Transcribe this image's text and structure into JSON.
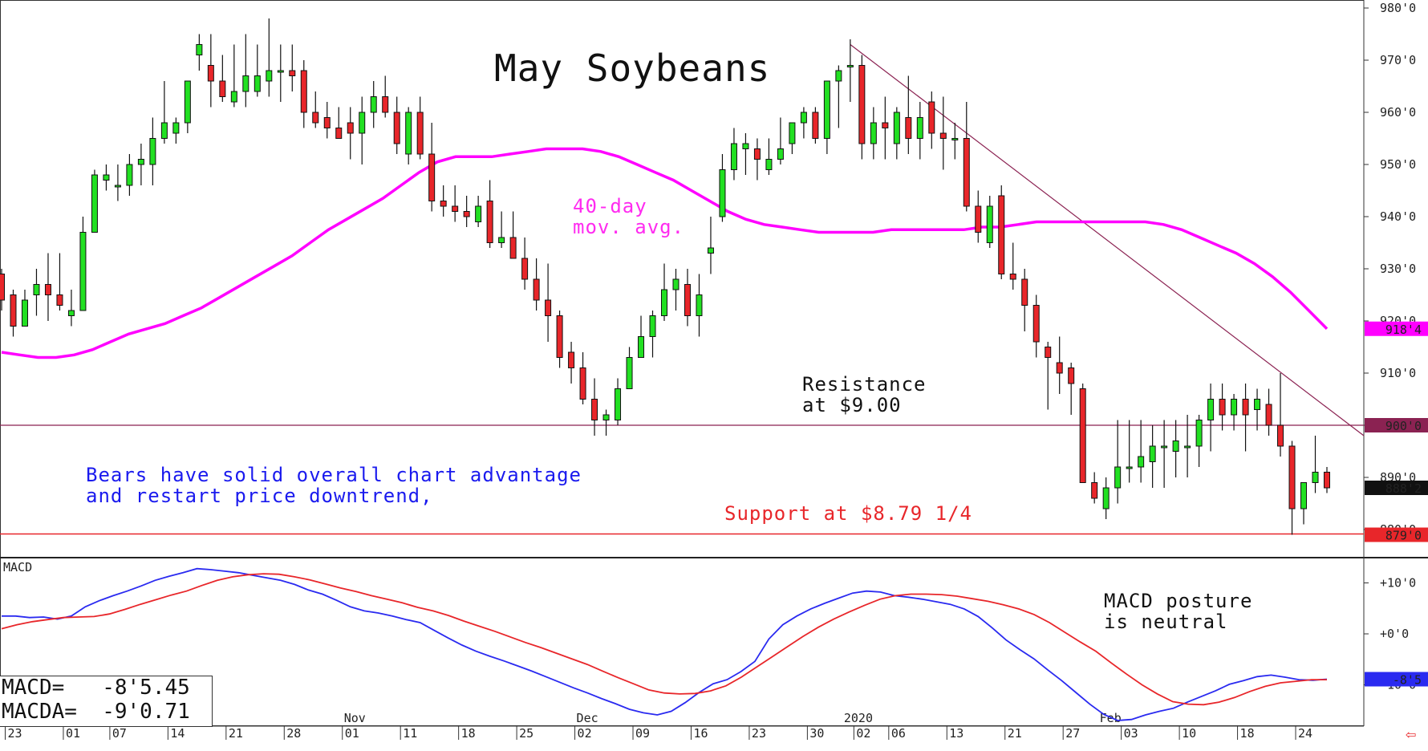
{
  "chart_data": [
    {
      "type": "candlestick",
      "title": "May Soybeans",
      "y_tick_labels": [
        "980'0",
        "970'0",
        "960'0",
        "950'0",
        "940'0",
        "930'0",
        "920'0",
        "910'0",
        "900'0",
        "890'0",
        "880'0"
      ],
      "ylim": [
        875,
        980
      ],
      "x_tick_labels": [
        "23",
        "01",
        "07",
        "14",
        "21",
        "28",
        "01",
        "11",
        "18",
        "25",
        "02",
        "09",
        "16",
        "23",
        "30",
        "02",
        "06",
        "13",
        "21",
        "27",
        "03",
        "10",
        "18",
        "24"
      ],
      "x_month_labels": [
        "Nov",
        "Dec",
        "2020",
        "Feb"
      ],
      "price_markers": {
        "ma": {
          "label": "918'4",
          "color": "#ff00ff"
        },
        "resistance": {
          "label": "900'0",
          "color": "#8b2252"
        },
        "last": {
          "label": "888'2",
          "color": "#111111"
        },
        "support": {
          "label": "879'0",
          "color": "#e8262a"
        }
      },
      "annotations": {
        "ma_label": "40-day\nmov. avg.",
        "resistance": "Resistance\nat $9.00",
        "bears": "Bears have solid overall chart advantage\nand restart price downtrend,",
        "support": "Support at $8.79 1/4",
        "macd_posture": "MACD posture\nis neutral"
      },
      "levels": {
        "resistance": 900,
        "support": 879
      },
      "trendline": {
        "start": 973,
        "end": 898
      },
      "moving_average": [
        914,
        913.5,
        913,
        913,
        913.5,
        914.5,
        916,
        917.5,
        918.5,
        919.5,
        921,
        922.5,
        924.5,
        926.5,
        928.5,
        930.5,
        932.5,
        935,
        937.5,
        939.5,
        941.5,
        943.5,
        946,
        948.5,
        950.5,
        951.5,
        951.5,
        951.5,
        952,
        952.5,
        953,
        953,
        953,
        952.5,
        951.5,
        950,
        948.5,
        947,
        945,
        943,
        941,
        939.5,
        938.5,
        938,
        937.5,
        937,
        937,
        937,
        937,
        937.5,
        937.5,
        937.5,
        937.5,
        937.5,
        938,
        938,
        938.5,
        939,
        939,
        939,
        939,
        939,
        939,
        939,
        938.5,
        937.5,
        936,
        934.5,
        933,
        931,
        928.5,
        925.5,
        922,
        918.5
      ],
      "candles": [
        [
          929,
          930,
          922,
          924
        ],
        [
          925,
          926,
          917,
          919
        ],
        [
          919,
          926,
          919,
          924
        ],
        [
          925,
          930,
          921,
          927
        ],
        [
          927,
          933,
          920,
          925
        ],
        [
          925,
          933,
          922,
          923
        ],
        [
          921,
          926,
          919,
          922
        ],
        [
          922,
          940,
          922,
          937
        ],
        [
          937,
          949,
          937,
          948
        ],
        [
          947,
          950,
          945,
          948
        ],
        [
          946,
          950,
          943,
          946
        ],
        [
          946,
          952,
          944,
          950
        ],
        [
          950,
          954,
          946,
          951
        ],
        [
          950,
          959,
          946,
          955
        ],
        [
          955,
          966,
          954,
          958
        ],
        [
          956,
          959,
          954,
          958
        ],
        [
          958,
          966,
          956,
          966
        ],
        [
          971,
          975,
          968,
          973
        ],
        [
          969,
          975,
          961,
          966
        ],
        [
          966,
          971,
          962,
          963
        ],
        [
          962,
          973,
          961,
          964
        ],
        [
          964,
          975,
          961,
          967
        ],
        [
          964,
          973,
          963,
          967
        ],
        [
          966,
          978,
          963,
          968
        ],
        [
          968,
          973,
          962,
          968
        ],
        [
          968,
          973,
          964,
          967
        ],
        [
          968,
          970,
          957,
          960
        ],
        [
          960,
          964,
          957,
          958
        ],
        [
          959,
          962,
          955,
          957
        ],
        [
          957,
          961,
          955,
          955
        ],
        [
          958,
          961,
          951,
          956
        ],
        [
          956,
          963,
          950,
          960
        ],
        [
          960,
          966,
          957,
          963
        ],
        [
          963,
          967,
          959,
          960
        ],
        [
          960,
          963,
          952,
          954
        ],
        [
          952,
          961,
          950,
          960
        ],
        [
          960,
          963,
          951,
          952
        ],
        [
          952,
          958,
          941,
          943
        ],
        [
          943,
          946,
          940,
          942
        ],
        [
          942,
          946,
          939,
          941
        ],
        [
          941,
          944,
          938,
          940
        ],
        [
          939,
          944,
          938,
          942
        ],
        [
          943,
          947,
          934,
          935
        ],
        [
          935,
          941,
          934,
          936
        ],
        [
          936,
          941,
          932,
          932
        ],
        [
          932,
          936,
          926,
          928
        ],
        [
          928,
          932,
          922,
          924
        ],
        [
          924,
          931,
          916,
          921
        ],
        [
          921,
          922,
          911,
          913
        ],
        [
          914,
          916,
          908,
          911
        ],
        [
          911,
          914,
          904,
          905
        ],
        [
          905,
          909,
          898,
          901
        ],
        [
          901,
          903,
          898,
          902
        ],
        [
          901,
          909,
          900,
          907
        ],
        [
          907,
          915,
          907,
          913
        ],
        [
          913,
          921,
          913,
          917
        ],
        [
          917,
          922,
          913,
          921
        ],
        [
          921,
          931,
          920,
          926
        ],
        [
          926,
          930,
          922,
          928
        ],
        [
          927,
          930,
          919,
          921
        ],
        [
          921,
          929,
          917,
          925
        ],
        [
          933,
          940,
          929,
          934
        ],
        [
          940,
          952,
          939,
          949
        ],
        [
          949,
          957,
          947,
          954
        ],
        [
          953,
          956,
          948,
          954
        ],
        [
          953,
          955,
          947,
          951
        ],
        [
          949,
          955,
          948,
          951
        ],
        [
          951,
          959,
          950,
          953
        ],
        [
          954,
          958,
          952,
          958
        ],
        [
          958,
          961,
          955,
          960
        ],
        [
          960,
          961,
          954,
          955
        ],
        [
          955,
          966,
          952,
          966
        ],
        [
          966,
          969,
          957,
          968
        ],
        [
          969,
          974,
          962,
          969
        ],
        [
          969,
          971,
          951,
          954
        ],
        [
          954,
          961,
          951,
          958
        ],
        [
          958,
          963,
          951,
          957
        ],
        [
          954,
          961,
          951,
          960
        ],
        [
          959,
          967,
          952,
          955
        ],
        [
          955,
          962,
          951,
          959
        ],
        [
          962,
          964,
          953,
          956
        ],
        [
          956,
          963,
          949,
          955
        ],
        [
          955,
          958,
          951,
          955
        ],
        [
          955,
          962,
          941,
          942
        ],
        [
          942,
          945,
          935,
          937
        ],
        [
          935,
          944,
          934,
          942
        ],
        [
          944,
          946,
          928,
          929
        ],
        [
          929,
          935,
          926,
          928
        ],
        [
          928,
          930,
          918,
          923
        ],
        [
          923,
          925,
          913,
          916
        ],
        [
          915,
          916,
          903,
          913
        ],
        [
          912,
          917,
          906,
          910
        ],
        [
          911,
          912,
          902,
          908
        ],
        [
          907,
          908,
          889,
          889
        ],
        [
          889,
          891,
          885,
          886
        ],
        [
          884,
          890,
          882,
          888
        ],
        [
          888,
          901,
          885,
          892
        ],
        [
          892,
          901,
          889,
          892
        ],
        [
          892,
          901,
          889,
          894
        ],
        [
          893,
          900,
          888,
          896
        ],
        [
          896,
          901,
          888,
          896
        ],
        [
          895,
          901,
          890,
          897
        ],
        [
          896,
          902,
          890,
          896
        ],
        [
          896,
          902,
          892,
          901
        ],
        [
          901,
          908,
          895,
          905
        ],
        [
          905,
          908,
          899,
          902
        ],
        [
          902,
          906,
          899,
          905
        ],
        [
          905,
          908,
          895,
          902
        ],
        [
          903,
          907,
          899,
          905
        ],
        [
          904,
          907,
          898,
          900
        ],
        [
          900,
          910,
          894,
          896
        ],
        [
          896,
          897,
          879,
          884
        ],
        [
          884,
          889,
          881,
          889
        ],
        [
          889,
          898,
          887,
          891
        ],
        [
          891,
          892,
          887,
          888
        ]
      ],
      "macd": {
        "label": "MACD",
        "y_tick_labels": [
          "+10'0",
          "+0'0",
          "-10'0"
        ],
        "ylim": [
          -18,
          18
        ],
        "markers": {
          "macd": {
            "label": "-8'5",
            "color": "#2a2af0"
          }
        },
        "readout_macd": "MACD=   -8'5.45",
        "readout_macda": "MACDA=  -9'0.71",
        "series": [
          {
            "color": "#2a2af0",
            "values": [
              3.5,
              3.5,
              3.2,
              3.3,
              2.9,
              3.5,
              5.3,
              6.5,
              7.5,
              8.4,
              9.4,
              10.5,
              11.3,
              12,
              12.8,
              12.6,
              12.3,
              12,
              11.5,
              11,
              10.5,
              9.7,
              8.6,
              7.8,
              6.6,
              5.3,
              4.5,
              4.1,
              3.5,
              2.8,
              2.2,
              0.7,
              -0.8,
              -2.2,
              -3.4,
              -4.4,
              -5.3,
              -6.3,
              -7.3,
              -8.4,
              -9.5,
              -10.6,
              -11.6,
              -12.7,
              -13.7,
              -14.8,
              -15.5,
              -15.9,
              -15.2,
              -13.5,
              -11.5,
              -9.8,
              -9,
              -7.4,
              -5.4,
              -1,
              1.8,
              3.5,
              4.9,
              6,
              7,
              8,
              8.4,
              8.2,
              7.5,
              7.2,
              6.8,
              6.3,
              5.8,
              4.9,
              3.4,
              1.2,
              -1.2,
              -3.1,
              -4.9,
              -7.1,
              -9.2,
              -11.5,
              -13.8,
              -15.8,
              -17,
              -16.8,
              -15.9,
              -15.2,
              -14.6,
              -13.4,
              -12.3,
              -11.2,
              -9.9,
              -9.2,
              -8.4,
              -8.1,
              -8.5,
              -9,
              -9.1,
              -8.9
            ]
          },
          {
            "color": "#e8262a",
            "values": [
              1,
              1.8,
              2.4,
              2.8,
              3.2,
              3.3,
              3.4,
              3.9,
              4.8,
              5.8,
              6.7,
              7.6,
              8.4,
              9.5,
              10.5,
              11.2,
              11.6,
              11.8,
              11.7,
              11.2,
              10.6,
              9.8,
              9,
              8.3,
              7.5,
              6.8,
              6.1,
              5.2,
              4.5,
              3.6,
              2.5,
              1.5,
              0.5,
              -0.6,
              -1.7,
              -2.7,
              -3.8,
              -4.9,
              -6,
              -7.3,
              -8.6,
              -9.8,
              -11,
              -11.6,
              -11.8,
              -11.7,
              -11.2,
              -10.2,
              -8.5,
              -6.5,
              -4.5,
              -2.5,
              -0.5,
              1.3,
              2.9,
              4.3,
              5.6,
              6.8,
              7.5,
              7.8,
              7.8,
              7.7,
              7.4,
              6.9,
              6.4,
              5.7,
              4.9,
              3.8,
              2.2,
              0.3,
              -1.6,
              -3.4,
              -5.7,
              -7.9,
              -10,
              -11.8,
              -13.3,
              -13.8,
              -13.9,
              -13.4,
              -12.5,
              -11.3,
              -10.3,
              -9.6,
              -9.3,
              -9,
              -9
            ]
          }
        ]
      }
    }
  ]
}
